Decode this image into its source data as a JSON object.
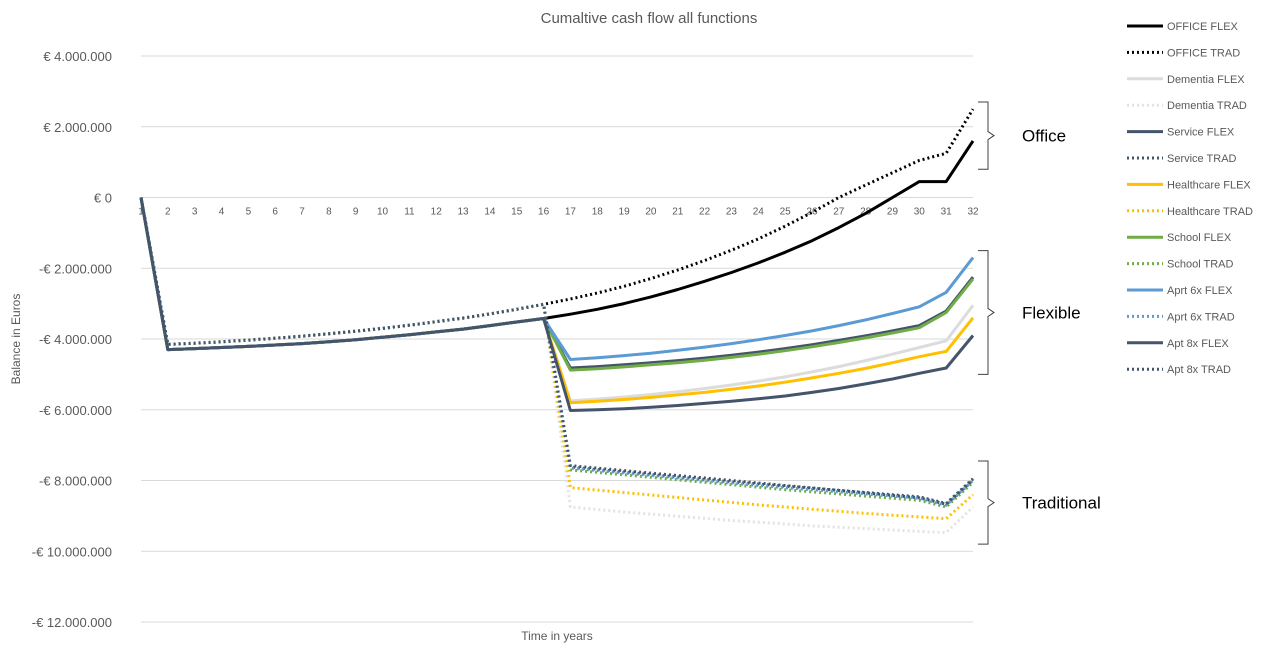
{
  "chart_data": {
    "type": "line",
    "title": "Cumaltive cash flow all functions",
    "xlabel": "Time in years",
    "ylabel": "Balance in Euros",
    "ylim": [
      -12000000,
      4000000
    ],
    "yticks": [
      4000000,
      2000000,
      0,
      -2000000,
      -4000000,
      -6000000,
      -8000000,
      -10000000,
      -12000000
    ],
    "ytick_labels": [
      "€ 4.000.000",
      "€ 2.000.000",
      "€ 0",
      "-€ 2.000.000",
      "-€ 4.000.000",
      "-€ 6.000.000",
      "-€ 8.000.000",
      "-€ 10.000.000",
      "-€ 12.000.000"
    ],
    "x": [
      1,
      2,
      3,
      4,
      5,
      6,
      7,
      8,
      9,
      10,
      11,
      12,
      13,
      14,
      15,
      16,
      17,
      18,
      19,
      20,
      21,
      22,
      23,
      24,
      25,
      26,
      27,
      28,
      29,
      30,
      31,
      32
    ],
    "grid": true,
    "legend_position": "right",
    "series": [
      {
        "name": "OFFICE FLEX",
        "color": "#000000",
        "dash": "solid",
        "values": [
          0,
          -4300000,
          -4270000,
          -4240000,
          -4210000,
          -4170000,
          -4130000,
          -4080000,
          -4020000,
          -3950000,
          -3880000,
          -3800000,
          -3720000,
          -3620000,
          -3520000,
          -3420000,
          -3300000,
          -3160000,
          -3000000,
          -2810000,
          -2600000,
          -2370000,
          -2120000,
          -1850000,
          -1550000,
          -1220000,
          -850000,
          -450000,
          0,
          450000,
          450000,
          1600000
        ]
      },
      {
        "name": "OFFICE TRAD",
        "color": "#000000",
        "dash": "dotted",
        "values": [
          0,
          -4150000,
          -4120000,
          -4080000,
          -4030000,
          -3980000,
          -3920000,
          -3850000,
          -3780000,
          -3700000,
          -3610000,
          -3510000,
          -3410000,
          -3290000,
          -3160000,
          -3020000,
          -2870000,
          -2700000,
          -2510000,
          -2290000,
          -2050000,
          -1780000,
          -1490000,
          -1170000,
          -810000,
          -420000,
          0,
          350000,
          700000,
          1050000,
          1250000,
          2500000
        ]
      },
      {
        "name": "Dementia FLEX",
        "color": "#dcdcdc",
        "dash": "solid",
        "values": [
          0,
          -4300000,
          -4270000,
          -4240000,
          -4210000,
          -4170000,
          -4130000,
          -4080000,
          -4020000,
          -3950000,
          -3880000,
          -3800000,
          -3720000,
          -3620000,
          -3520000,
          -3420000,
          -5750000,
          -5700000,
          -5640000,
          -5570000,
          -5490000,
          -5400000,
          -5300000,
          -5190000,
          -5070000,
          -4930000,
          -4780000,
          -4610000,
          -4430000,
          -4240000,
          -4050000,
          -3050000
        ]
      },
      {
        "name": "Dementia TRAD",
        "color": "#e3e3e3",
        "dash": "dotted",
        "values": [
          0,
          -4150000,
          -4120000,
          -4080000,
          -4030000,
          -3980000,
          -3920000,
          -3850000,
          -3780000,
          -3700000,
          -3610000,
          -3510000,
          -3410000,
          -3290000,
          -3160000,
          -3020000,
          -8750000,
          -8820000,
          -8890000,
          -8950000,
          -9010000,
          -9070000,
          -9130000,
          -9180000,
          -9230000,
          -9280000,
          -9320000,
          -9360000,
          -9400000,
          -9440000,
          -9470000,
          -8750000
        ]
      },
      {
        "name": "Service FLEX",
        "color": "#44546a",
        "dash": "solid",
        "values": [
          0,
          -4300000,
          -4270000,
          -4240000,
          -4210000,
          -4170000,
          -4130000,
          -4080000,
          -4020000,
          -3950000,
          -3880000,
          -3800000,
          -3720000,
          -3620000,
          -3520000,
          -3420000,
          -4820000,
          -4780000,
          -4730000,
          -4670000,
          -4610000,
          -4540000,
          -4460000,
          -4370000,
          -4270000,
          -4160000,
          -4040000,
          -3910000,
          -3770000,
          -3620000,
          -3210000,
          -2250000
        ]
      },
      {
        "name": "Service TRAD",
        "color": "#44546a",
        "dash": "dotted",
        "values": [
          0,
          -4150000,
          -4120000,
          -4080000,
          -4030000,
          -3980000,
          -3920000,
          -3850000,
          -3780000,
          -3700000,
          -3610000,
          -3510000,
          -3410000,
          -3290000,
          -3160000,
          -3020000,
          -7620000,
          -7690000,
          -7760000,
          -7830000,
          -7900000,
          -7970000,
          -8040000,
          -8100000,
          -8160000,
          -8220000,
          -8280000,
          -8340000,
          -8400000,
          -8460000,
          -8650000,
          -7950000
        ]
      },
      {
        "name": "Healthcare FLEX",
        "color": "#ffc000",
        "dash": "solid",
        "values": [
          0,
          -4300000,
          -4270000,
          -4240000,
          -4210000,
          -4170000,
          -4130000,
          -4080000,
          -4020000,
          -3950000,
          -3880000,
          -3800000,
          -3720000,
          -3620000,
          -3520000,
          -3420000,
          -5800000,
          -5760000,
          -5710000,
          -5650000,
          -5580000,
          -5510000,
          -5420000,
          -5330000,
          -5220000,
          -5100000,
          -4970000,
          -4830000,
          -4670000,
          -4500000,
          -4350000,
          -3400000
        ]
      },
      {
        "name": "Healthcare TRAD",
        "color": "#ffc000",
        "dash": "dotted",
        "values": [
          0,
          -4150000,
          -4120000,
          -4080000,
          -4030000,
          -3980000,
          -3920000,
          -3850000,
          -3780000,
          -3700000,
          -3610000,
          -3510000,
          -3410000,
          -3290000,
          -3160000,
          -3020000,
          -8200000,
          -8270000,
          -8340000,
          -8410000,
          -8480000,
          -8550000,
          -8620000,
          -8690000,
          -8750000,
          -8810000,
          -8870000,
          -8930000,
          -8980000,
          -9030000,
          -9080000,
          -8400000
        ]
      },
      {
        "name": "School FLEX",
        "color": "#70ad47",
        "dash": "solid",
        "values": [
          0,
          -4300000,
          -4270000,
          -4240000,
          -4210000,
          -4170000,
          -4130000,
          -4080000,
          -4020000,
          -3950000,
          -3880000,
          -3800000,
          -3720000,
          -3620000,
          -3520000,
          -3420000,
          -4880000,
          -4840000,
          -4790000,
          -4730000,
          -4670000,
          -4600000,
          -4520000,
          -4430000,
          -4330000,
          -4220000,
          -4100000,
          -3970000,
          -3830000,
          -3680000,
          -3250000,
          -2300000
        ]
      },
      {
        "name": "School TRAD",
        "color": "#70ad47",
        "dash": "dotted",
        "values": [
          0,
          -4150000,
          -4120000,
          -4080000,
          -4030000,
          -3980000,
          -3920000,
          -3850000,
          -3780000,
          -3700000,
          -3610000,
          -3510000,
          -3410000,
          -3290000,
          -3160000,
          -3020000,
          -7700000,
          -7770000,
          -7840000,
          -7910000,
          -7980000,
          -8050000,
          -8120000,
          -8190000,
          -8260000,
          -8320000,
          -8380000,
          -8440000,
          -8500000,
          -8560000,
          -8750000,
          -8050000
        ]
      },
      {
        "name": "Aprt 6x FLEX",
        "color": "#5b9bd5",
        "dash": "solid",
        "values": [
          0,
          -4300000,
          -4270000,
          -4240000,
          -4210000,
          -4170000,
          -4130000,
          -4080000,
          -4020000,
          -3950000,
          -3880000,
          -3800000,
          -3720000,
          -3620000,
          -3520000,
          -3420000,
          -4580000,
          -4530000,
          -4470000,
          -4400000,
          -4320000,
          -4230000,
          -4130000,
          -4020000,
          -3900000,
          -3770000,
          -3620000,
          -3460000,
          -3280000,
          -3090000,
          -2680000,
          -1700000
        ]
      },
      {
        "name": "Aprt 6x TRAD",
        "color": "#5b9bd5",
        "dash": "dotted",
        "values": [
          0,
          -4150000,
          -4120000,
          -4080000,
          -4030000,
          -3980000,
          -3920000,
          -3850000,
          -3780000,
          -3700000,
          -3610000,
          -3510000,
          -3410000,
          -3290000,
          -3160000,
          -3020000,
          -7650000,
          -7720000,
          -7790000,
          -7860000,
          -7930000,
          -8000000,
          -8070000,
          -8140000,
          -8200000,
          -8260000,
          -8320000,
          -8380000,
          -8440000,
          -8500000,
          -8700000,
          -8000000
        ]
      },
      {
        "name": "Apt 8x FLEX",
        "color": "#44546a",
        "dash": "solid",
        "values": [
          0,
          -4300000,
          -4270000,
          -4240000,
          -4210000,
          -4170000,
          -4130000,
          -4080000,
          -4020000,
          -3950000,
          -3880000,
          -3800000,
          -3720000,
          -3620000,
          -3520000,
          -3420000,
          -6020000,
          -6000000,
          -5970000,
          -5930000,
          -5880000,
          -5820000,
          -5760000,
          -5690000,
          -5610000,
          -5510000,
          -5400000,
          -5270000,
          -5130000,
          -4970000,
          -4820000,
          -3900000
        ]
      },
      {
        "name": "Apt 8x TRAD",
        "color": "#44546a",
        "dash": "dotted",
        "values": [
          0,
          -4150000,
          -4120000,
          -4080000,
          -4030000,
          -3980000,
          -3920000,
          -3850000,
          -3780000,
          -3700000,
          -3610000,
          -3510000,
          -3410000,
          -3290000,
          -3160000,
          -3020000,
          -7580000,
          -7650000,
          -7720000,
          -7790000,
          -7860000,
          -7930000,
          -8000000,
          -8070000,
          -8140000,
          -8210000,
          -8280000,
          -8350000,
          -8420000,
          -8490000,
          -8670000,
          -7980000
        ]
      }
    ],
    "annotations": [
      {
        "label": "Office",
        "ymin": 800000,
        "ymax": 2700000
      },
      {
        "label": "Flexible",
        "ymin": -5000000,
        "ymax": -1500000
      },
      {
        "label": "Traditional",
        "ymin": -9800000,
        "ymax": -7450000
      }
    ]
  }
}
